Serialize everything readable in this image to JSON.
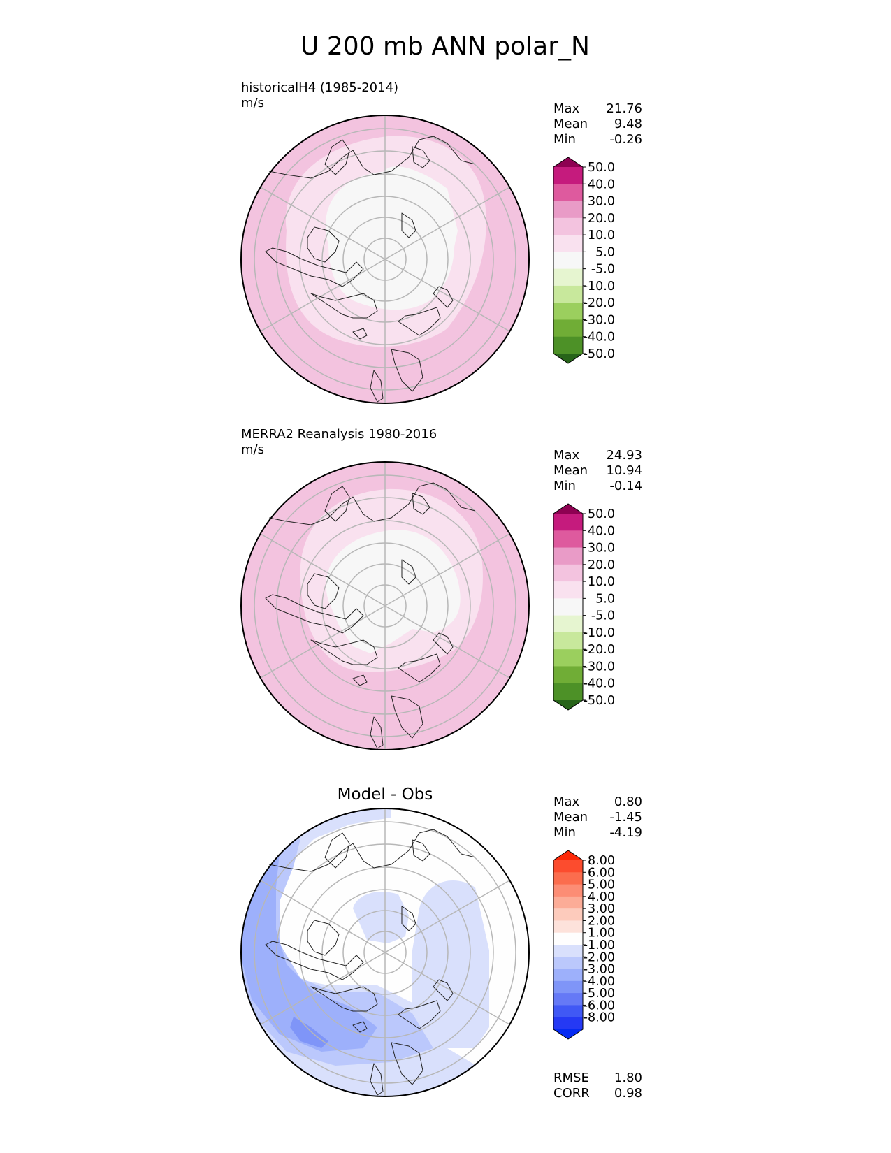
{
  "figure": {
    "title": "U 200 mb ANN polar_N"
  },
  "colormaps": {
    "wind": [
      "#8e0152",
      "#c51b7d",
      "#de5a9e",
      "#e99bc7",
      "#f3c3df",
      "#f9e1ef",
      "#f7f7f7",
      "#e6f5d0",
      "#c8e89c",
      "#9bcf5e",
      "#70ad36",
      "#4d9127",
      "#276419"
    ],
    "diff": [
      "#fc2808",
      "#fc4c2e",
      "#fb6d4e",
      "#fc8d75",
      "#fcac97",
      "#fdcbbc",
      "#fde2db",
      "#fefefe",
      "#d9e0fc",
      "#bbc8fc",
      "#9db0fb",
      "#7f95f8",
      "#6579f6",
      "#4058f5",
      "#2539f4",
      "#052af3"
    ]
  },
  "chart_data": [
    {
      "type": "heatmap",
      "projection": "north polar stereographic",
      "title": "historicalH4 (1985-2014)",
      "units": "m/s",
      "colormap": "wind",
      "colorbar_ticks": [
        "50.0",
        "40.0",
        "30.0",
        "20.0",
        "10.0",
        "5.0",
        "-5.0",
        "-10.0",
        "-20.0",
        "-30.0",
        "-40.0",
        "-50.0"
      ],
      "stats": [
        {
          "label": "Max",
          "value": "21.76"
        },
        {
          "label": "Mean",
          "value": "9.48"
        },
        {
          "label": "Min",
          "value": "-0.26"
        }
      ]
    },
    {
      "type": "heatmap",
      "projection": "north polar stereographic",
      "title": "MERRA2 Reanalysis 1980-2016",
      "units": "m/s",
      "colormap": "wind",
      "colorbar_ticks": [
        "50.0",
        "40.0",
        "30.0",
        "20.0",
        "10.0",
        "5.0",
        "-5.0",
        "-10.0",
        "-20.0",
        "-30.0",
        "-40.0",
        "-50.0"
      ],
      "stats": [
        {
          "label": "Max",
          "value": "24.93"
        },
        {
          "label": "Mean",
          "value": "10.94"
        },
        {
          "label": "Min",
          "value": "-0.14"
        }
      ]
    },
    {
      "type": "heatmap",
      "projection": "north polar stereographic",
      "title": "Model - Obs",
      "colormap": "diff",
      "colorbar_ticks": [
        "8.00",
        "6.00",
        "5.00",
        "4.00",
        "3.00",
        "2.00",
        "1.00",
        "-1.00",
        "-2.00",
        "-3.00",
        "-4.00",
        "-5.00",
        "-6.00",
        "-8.00"
      ],
      "stats": [
        {
          "label": "Max",
          "value": "0.80"
        },
        {
          "label": "Mean",
          "value": "-1.45"
        },
        {
          "label": "Min",
          "value": "-4.19"
        }
      ],
      "extra_stats": [
        {
          "label": "RMSE",
          "value": "1.80"
        },
        {
          "label": "CORR",
          "value": "0.98"
        }
      ]
    }
  ]
}
